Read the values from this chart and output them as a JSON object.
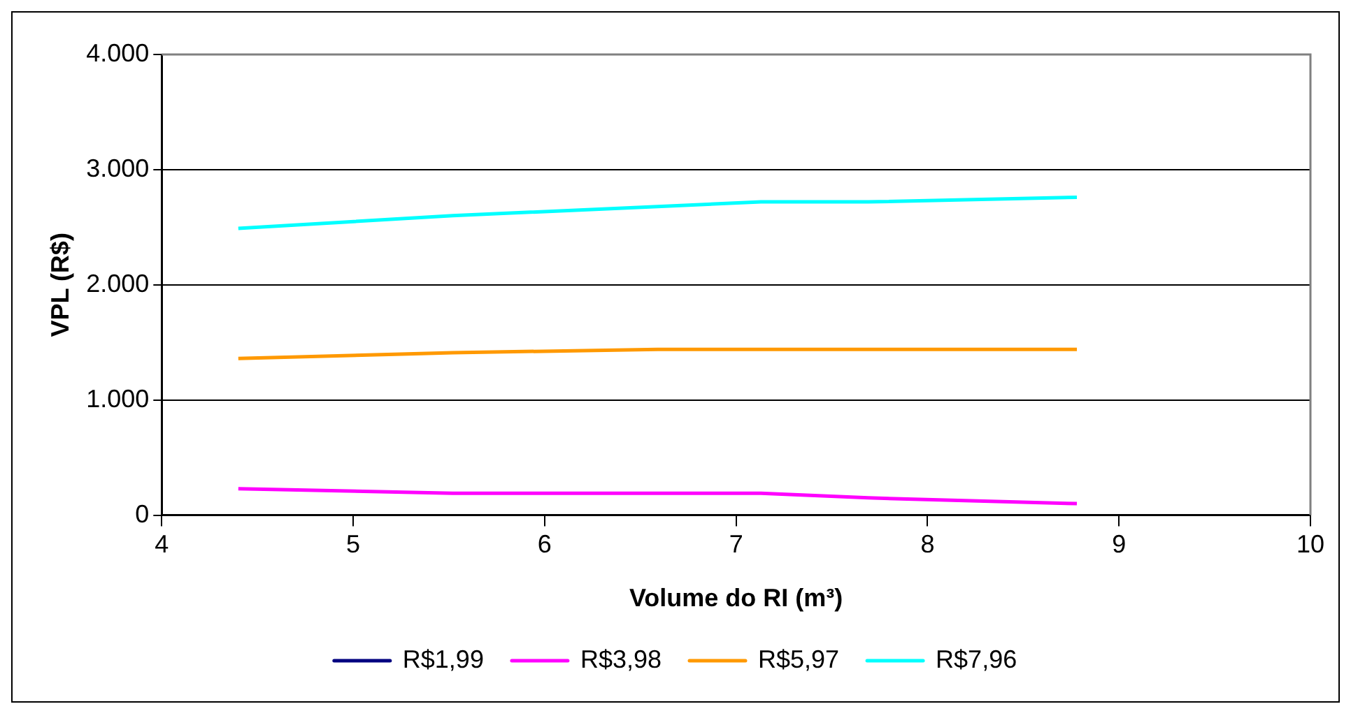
{
  "chart_data": {
    "type": "line",
    "xlabel": "Volume do RI (m³)",
    "ylabel": "VPL (R$)",
    "x": [
      4.4,
      5.52,
      6.59,
      7.13,
      7.69,
      8.78
    ],
    "series": [
      {
        "name": "R$1,99",
        "color": "#000080",
        "values": [
          null,
          null,
          null,
          null,
          null,
          null
        ]
      },
      {
        "name": "R$3,98",
        "color": "#ff00ff",
        "values": [
          230,
          190,
          190,
          190,
          150,
          100
        ]
      },
      {
        "name": "R$5,97",
        "color": "#ff9900",
        "values": [
          1360,
          1410,
          1440,
          1440,
          1440,
          1440
        ]
      },
      {
        "name": "R$7,96",
        "color": "#00ffff",
        "values": [
          2490,
          2600,
          2680,
          2720,
          2720,
          2760
        ]
      }
    ],
    "xlim": [
      4,
      10
    ],
    "xticks": [
      4,
      5,
      6,
      7,
      8,
      9,
      10
    ],
    "ylim": [
      0,
      4000
    ],
    "yticks": [
      0,
      {
        "value": 1000,
        "label": "1.000"
      },
      {
        "value": 2000,
        "label": "2.000"
      },
      {
        "value": 3000,
        "label": "3.000"
      },
      {
        "value": 4000,
        "label": "4.000"
      }
    ],
    "grid": "y",
    "legend": "bottom",
    "marker": "none",
    "line_style": "solid"
  }
}
